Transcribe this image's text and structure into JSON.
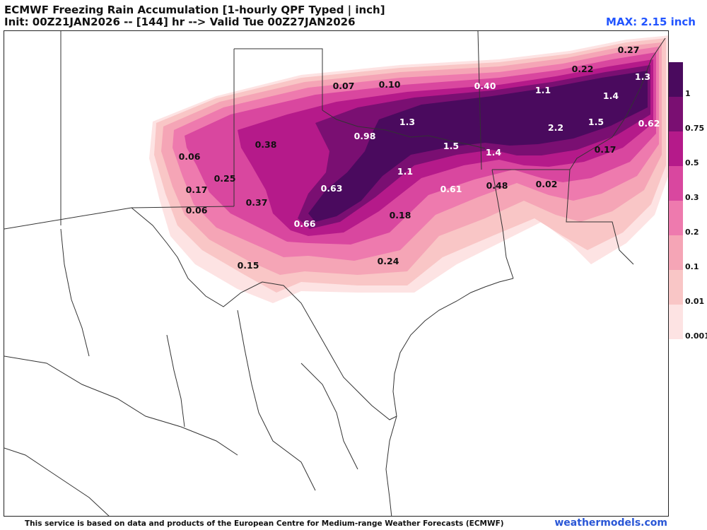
{
  "header": {
    "title": "ECMWF Freezing Rain Accumulation [1-hourly QPF Typed | inch]",
    "subtitle": "Init: 00Z21JAN2026 -- [144] hr --> Valid Tue 00Z27JAN2026",
    "max_label": "MAX: 2.15 inch"
  },
  "legend": {
    "levels": [
      {
        "label": "1",
        "color": "#4a0a5e"
      },
      {
        "label": "0.75",
        "color": "#7a0f72"
      },
      {
        "label": "0.5",
        "color": "#b51a8a"
      },
      {
        "label": "0.3",
        "color": "#d9479f"
      },
      {
        "label": "0.2",
        "color": "#ee7aae"
      },
      {
        "label": "0.1",
        "color": "#f5a5b6"
      },
      {
        "label": "0.01",
        "color": "#f9c6c6"
      },
      {
        "label": "0.001",
        "color": "#fde3e3"
      }
    ]
  },
  "map_values": [
    {
      "text": "0.27",
      "color": "#111111"
    },
    {
      "text": "0.22",
      "color": "#111111"
    },
    {
      "text": "1.3",
      "color": "#ffffff"
    },
    {
      "text": "0.07",
      "color": "#111111"
    },
    {
      "text": "0.10",
      "color": "#111111"
    },
    {
      "text": "0.40",
      "color": "#ffffff"
    },
    {
      "text": "1.1",
      "color": "#ffffff"
    },
    {
      "text": "1.4",
      "color": "#ffffff"
    },
    {
      "text": "1.3",
      "color": "#ffffff"
    },
    {
      "text": "0.98",
      "color": "#ffffff"
    },
    {
      "text": "2.2",
      "color": "#ffffff"
    },
    {
      "text": "1.5",
      "color": "#ffffff"
    },
    {
      "text": "0.62",
      "color": "#ffffff"
    },
    {
      "text": "0.38",
      "color": "#111111"
    },
    {
      "text": "1.5",
      "color": "#ffffff"
    },
    {
      "text": "1.4",
      "color": "#ffffff"
    },
    {
      "text": "0.17",
      "color": "#111111"
    },
    {
      "text": "0.06",
      "color": "#111111"
    },
    {
      "text": "0.25",
      "color": "#111111"
    },
    {
      "text": "1.1",
      "color": "#ffffff"
    },
    {
      "text": "0.17",
      "color": "#111111"
    },
    {
      "text": "0.63",
      "color": "#ffffff"
    },
    {
      "text": "0.61",
      "color": "#ffffff"
    },
    {
      "text": "0.48",
      "color": "#111111"
    },
    {
      "text": "0.02",
      "color": "#111111"
    },
    {
      "text": "0.06",
      "color": "#111111"
    },
    {
      "text": "0.37",
      "color": "#111111"
    },
    {
      "text": "0.18",
      "color": "#111111"
    },
    {
      "text": "0.66",
      "color": "#ffffff"
    },
    {
      "text": "0.24",
      "color": "#111111"
    },
    {
      "text": "0.15",
      "color": "#111111"
    }
  ],
  "footer": {
    "credit": "This service is based on data and products of the European Centre for Medium-range Weather Forecasts (ECMWF)",
    "brand": "weathermodels.com"
  }
}
